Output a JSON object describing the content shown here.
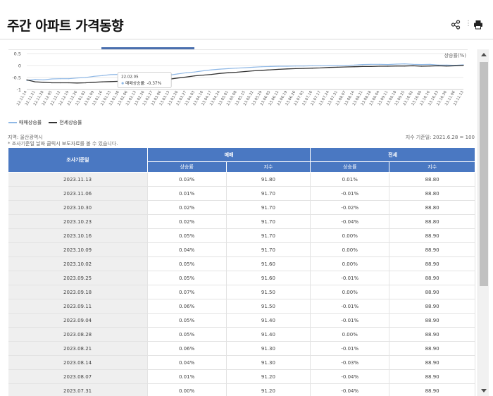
{
  "header": {
    "title": "주간 아파트 가격동향"
  },
  "icons": {
    "share": "share-icon",
    "more": "vertical-dots-icon",
    "print": "printer-icon"
  },
  "chart": {
    "unit_label": "상승률(%)",
    "tooltip": {
      "date": "22.02.05",
      "label": "매매상승률",
      "value": "-0.37%"
    },
    "legend": {
      "sale": "매매상승률",
      "jeonse": "전세상승률"
    }
  },
  "chart_data": {
    "type": "line",
    "ylim": [
      -1,
      0.5
    ],
    "yticks": [
      "0.5",
      "0",
      "-0.5",
      "-1"
    ],
    "x": [
      "22.11.14",
      "22.11.21",
      "22.11.28",
      "22.12.05",
      "22.12.12",
      "22.12.19",
      "22.12.26",
      "23.01.02",
      "23.01.09",
      "23.01.16",
      "23.01.23",
      "23.01.30",
      "23.02.06",
      "23.02.13",
      "23.02.20",
      "23.02.27",
      "23.03.06",
      "23.03.13",
      "23.03.20",
      "23.03.27",
      "23.04.03",
      "23.04.10",
      "23.04.17",
      "23.04.24",
      "23.05.01",
      "23.05.08",
      "23.05.15",
      "23.05.22",
      "23.05.29",
      "23.06.05",
      "23.06.12",
      "23.06.19",
      "23.06.26",
      "23.07.03",
      "23.07.10",
      "23.07.17",
      "23.07.24",
      "23.07.31",
      "23.08.07",
      "23.08.14",
      "23.08.21",
      "23.08.28",
      "23.09.04",
      "23.09.11",
      "23.09.18",
      "23.09.25",
      "23.10.02",
      "23.10.09",
      "23.10.16",
      "23.10.23",
      "23.10.30",
      "23.11.06",
      "23.11.13"
    ],
    "xtick_labels": [
      "22.11.14",
      "22.11.21",
      "22.11.28",
      "22.12.05",
      "22.12.12",
      "22.12.19",
      "22.12.26",
      "23.01.02",
      "23.01.09",
      "23.01.16",
      "23.01.23",
      "23.01.30",
      "23.02.06",
      "23.02.13",
      "23.02.20",
      "23.02.27",
      "23.03.06",
      "23.03.13",
      "23.03.20",
      "23.03.27",
      "23.04.03",
      "23.04.10",
      "23.04.17",
      "23.04.24",
      "23.05.01",
      "23.05.08",
      "23.05.15",
      "23.05.22",
      "23.05.29",
      "23.06.05",
      "23.06.12",
      "23.06.19",
      "23.06.26",
      "23.07.03",
      "23.07.10",
      "23.07.17",
      "23.07.24",
      "23.07.31",
      "23.08.07",
      "23.08.14",
      "23.08.21",
      "23.08.28",
      "23.09.04",
      "23.09.11",
      "23.09.18",
      "23.09.25",
      "23.10.02",
      "23.10.09",
      "23.10.16",
      "23.10.23",
      "23.10.30",
      "23.11.06",
      "23.11.13"
    ],
    "series": [
      {
        "name": "매매상승률",
        "color": "#8fb8e6",
        "values": [
          -0.62,
          -0.58,
          -0.6,
          -0.56,
          -0.55,
          -0.55,
          -0.52,
          -0.5,
          -0.45,
          -0.42,
          -0.38,
          -0.37,
          -0.42,
          -0.45,
          -0.44,
          -0.43,
          -0.47,
          -0.4,
          -0.35,
          -0.3,
          -0.27,
          -0.22,
          -0.18,
          -0.15,
          -0.13,
          -0.11,
          -0.09,
          -0.07,
          -0.05,
          -0.04,
          -0.03,
          -0.03,
          -0.02,
          -0.02,
          -0.01,
          -0.01,
          0.0,
          0.0,
          0.01,
          0.02,
          0.04,
          0.05,
          0.05,
          0.04,
          0.06,
          0.07,
          0.05,
          0.04,
          0.05,
          0.02,
          0.02,
          0.01,
          0.03
        ]
      },
      {
        "name": "전세상승률",
        "color": "#333333",
        "values": [
          -0.6,
          -0.68,
          -0.7,
          -0.72,
          -0.72,
          -0.72,
          -0.73,
          -0.72,
          -0.7,
          -0.68,
          -0.67,
          -0.66,
          -0.66,
          -0.66,
          -0.65,
          -0.63,
          -0.6,
          -0.57,
          -0.52,
          -0.48,
          -0.43,
          -0.4,
          -0.37,
          -0.33,
          -0.3,
          -0.28,
          -0.25,
          -0.22,
          -0.2,
          -0.18,
          -0.16,
          -0.14,
          -0.13,
          -0.12,
          -0.11,
          -0.1,
          -0.08,
          -0.07,
          -0.06,
          -0.05,
          -0.04,
          -0.04,
          -0.03,
          -0.03,
          -0.02,
          -0.02,
          -0.01,
          -0.03,
          -0.02,
          -0.01,
          -0.02,
          -0.01,
          0.01
        ]
      }
    ]
  },
  "info": {
    "region": "지역: 울산광역시",
    "note": "* 조사기준일 날짜 클릭시 보도자료를 볼 수 있습니다.",
    "index_base": "지수 기준일: 2021.6.28 = 100"
  },
  "table": {
    "date_header": "조사기준일",
    "sale_header": "매매",
    "jeonse_header": "전세",
    "rate_header": "상승률",
    "index_header": "지수",
    "rows": [
      {
        "date": "2023.11.13",
        "sale_rate": "0.03%",
        "sale_dir": "up",
        "sale_index": "91.80",
        "jeonse_rate": "0.01%",
        "jeonse_dir": "up",
        "jeonse_index": "88.80"
      },
      {
        "date": "2023.11.06",
        "sale_rate": "0.01%",
        "sale_dir": "up",
        "sale_index": "91.70",
        "jeonse_rate": "-0.01%",
        "jeonse_dir": "down",
        "jeonse_index": "88.80"
      },
      {
        "date": "2023.10.30",
        "sale_rate": "0.02%",
        "sale_dir": "up",
        "sale_index": "91.70",
        "jeonse_rate": "-0.02%",
        "jeonse_dir": "down",
        "jeonse_index": "88.80"
      },
      {
        "date": "2023.10.23",
        "sale_rate": "0.02%",
        "sale_dir": "up",
        "sale_index": "91.70",
        "jeonse_rate": "-0.04%",
        "jeonse_dir": "down",
        "jeonse_index": "88.80"
      },
      {
        "date": "2023.10.16",
        "sale_rate": "0.05%",
        "sale_dir": "up",
        "sale_index": "91.70",
        "jeonse_rate": "0.00%",
        "jeonse_dir": "flat",
        "jeonse_index": "88.90"
      },
      {
        "date": "2023.10.09",
        "sale_rate": "0.04%",
        "sale_dir": "up",
        "sale_index": "91.70",
        "jeonse_rate": "0.00%",
        "jeonse_dir": "flat",
        "jeonse_index": "88.90"
      },
      {
        "date": "2023.10.02",
        "sale_rate": "0.05%",
        "sale_dir": "up",
        "sale_index": "91.60",
        "jeonse_rate": "0.00%",
        "jeonse_dir": "flat",
        "jeonse_index": "88.90"
      },
      {
        "date": "2023.09.25",
        "sale_rate": "0.05%",
        "sale_dir": "up",
        "sale_index": "91.60",
        "jeonse_rate": "-0.01%",
        "jeonse_dir": "down",
        "jeonse_index": "88.90"
      },
      {
        "date": "2023.09.18",
        "sale_rate": "0.07%",
        "sale_dir": "up",
        "sale_index": "91.50",
        "jeonse_rate": "0.00%",
        "jeonse_dir": "flat",
        "jeonse_index": "88.90"
      },
      {
        "date": "2023.09.11",
        "sale_rate": "0.06%",
        "sale_dir": "up",
        "sale_index": "91.50",
        "jeonse_rate": "-0.01%",
        "jeonse_dir": "down",
        "jeonse_index": "88.90"
      },
      {
        "date": "2023.09.04",
        "sale_rate": "0.05%",
        "sale_dir": "up",
        "sale_index": "91.40",
        "jeonse_rate": "-0.01%",
        "jeonse_dir": "down",
        "jeonse_index": "88.90"
      },
      {
        "date": "2023.08.28",
        "sale_rate": "0.05%",
        "sale_dir": "up",
        "sale_index": "91.40",
        "jeonse_rate": "0.00%",
        "jeonse_dir": "flat",
        "jeonse_index": "88.90"
      },
      {
        "date": "2023.08.21",
        "sale_rate": "0.06%",
        "sale_dir": "up",
        "sale_index": "91.30",
        "jeonse_rate": "-0.01%",
        "jeonse_dir": "down",
        "jeonse_index": "88.90"
      },
      {
        "date": "2023.08.14",
        "sale_rate": "0.04%",
        "sale_dir": "up",
        "sale_index": "91.30",
        "jeonse_rate": "-0.03%",
        "jeonse_dir": "down",
        "jeonse_index": "88.90"
      },
      {
        "date": "2023.08.07",
        "sale_rate": "0.01%",
        "sale_dir": "up",
        "sale_index": "91.20",
        "jeonse_rate": "-0.04%",
        "jeonse_dir": "down",
        "jeonse_index": "88.90"
      },
      {
        "date": "2023.07.31",
        "sale_rate": "0.00%",
        "sale_dir": "flat",
        "sale_index": "91.20",
        "jeonse_rate": "-0.04%",
        "jeonse_dir": "down",
        "jeonse_index": "88.90"
      }
    ]
  }
}
